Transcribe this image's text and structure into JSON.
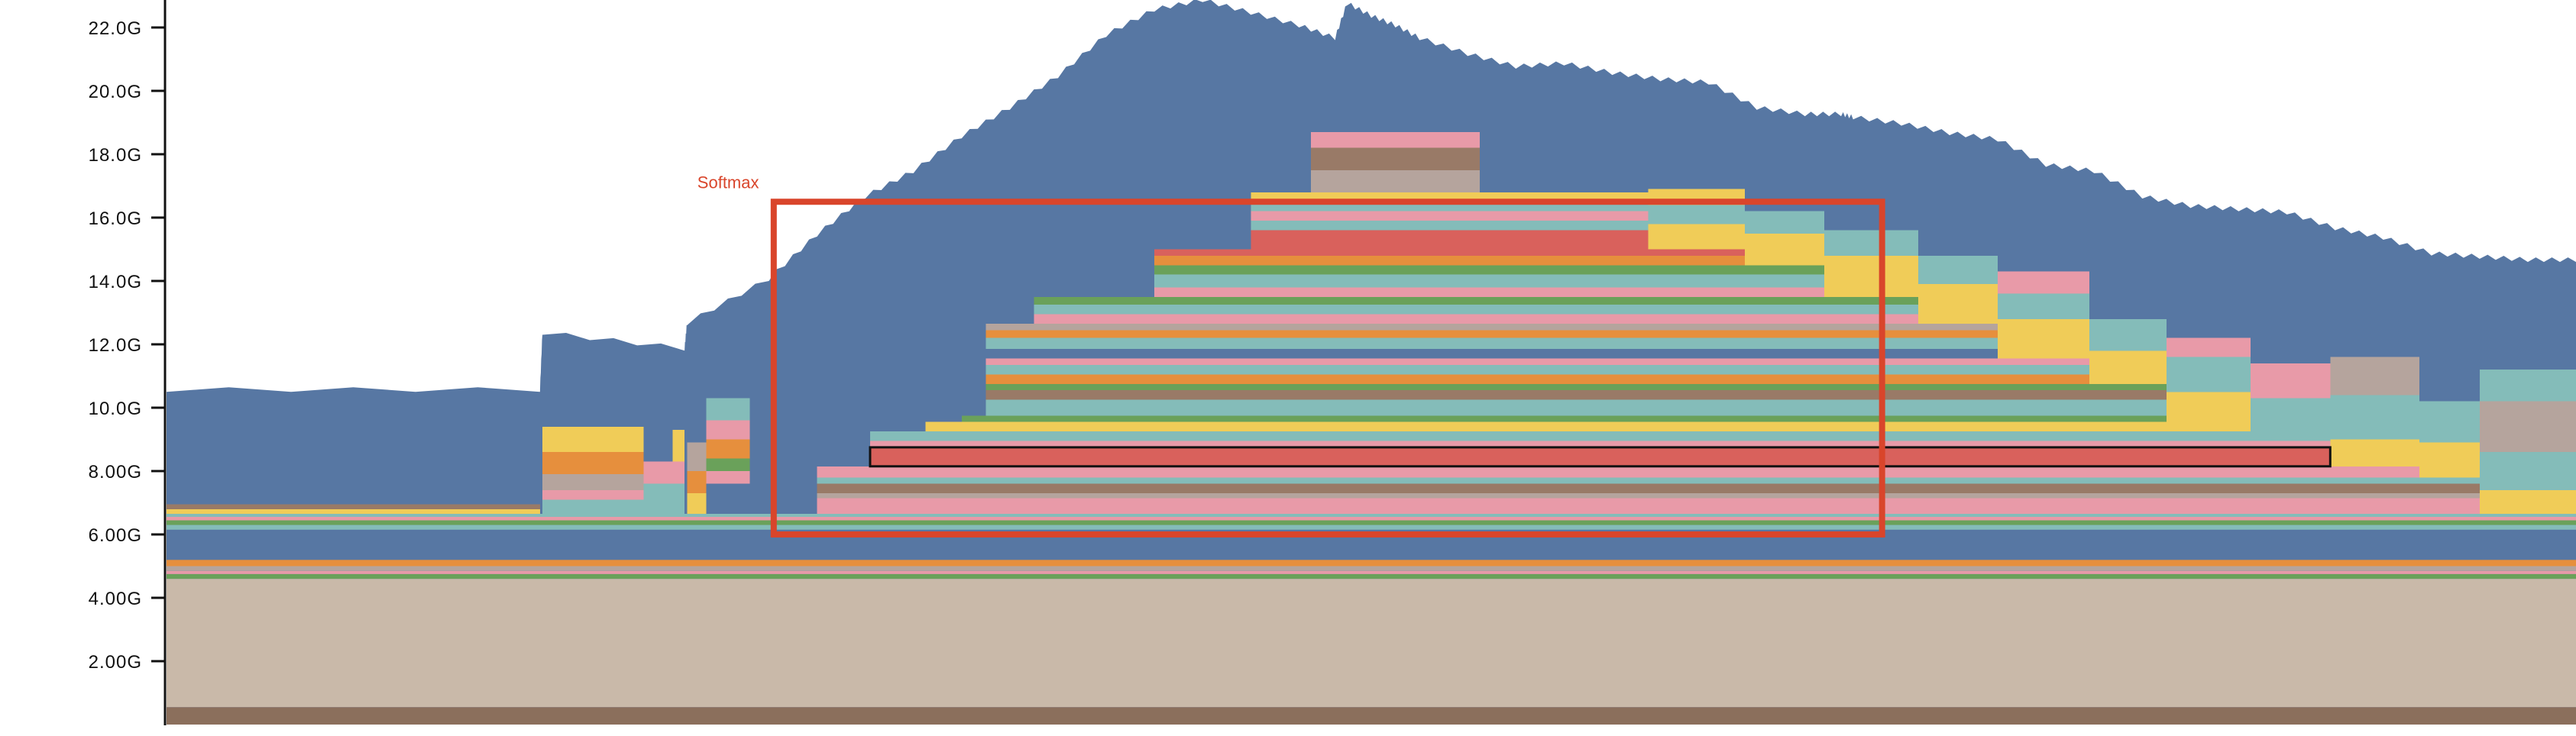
{
  "chart_data": {
    "type": "area",
    "title": "",
    "xlabel": "",
    "ylabel": "",
    "ylim": [
      0.0,
      23.0
    ],
    "xlim": [
      0,
      100
    ],
    "y_ticks": [
      "2.00G",
      "4.00G",
      "6.00G",
      "8.00G",
      "10.0G",
      "12.0G",
      "14.0G",
      "16.0G",
      "18.0G",
      "20.0G",
      "22.0G"
    ],
    "y_tick_values": [
      2,
      4,
      6,
      8,
      10,
      12,
      14,
      16,
      18,
      20,
      22
    ],
    "grid": false,
    "legend": "none",
    "colors": [
      "#8b6f5c",
      "#c9b9a9",
      "#5777a3",
      "#e89aa8",
      "#f0cc58",
      "#84bcb9",
      "#d9615c",
      "#e68f3d",
      "#b5a49d",
      "#6aa15a",
      "#997a67",
      "#e0a3b5"
    ],
    "top_total_bytes": {
      "x": [
        0,
        15.5,
        15.6,
        21.5,
        21.6,
        25,
        27,
        29,
        31,
        33,
        35,
        37,
        39,
        41,
        43,
        45,
        47,
        48.5,
        49,
        50,
        51,
        52,
        54,
        56,
        58,
        60,
        62,
        64,
        66,
        68,
        69.5,
        70,
        72,
        74,
        76,
        78,
        80,
        82,
        84,
        86,
        88,
        90,
        92,
        94,
        96,
        98,
        100
      ],
      "y": [
        10.5,
        10.5,
        12.3,
        11.8,
        12.6,
        14.0,
        15.4,
        16.6,
        17.4,
        18.5,
        19.4,
        20.4,
        21.7,
        22.5,
        22.8,
        22.4,
        22.0,
        21.6,
        22.7,
        22.3,
        22.0,
        21.6,
        21.1,
        20.7,
        20.8,
        20.5,
        20.3,
        20.2,
        19.4,
        19.2,
        19.2,
        19.1,
        18.9,
        18.6,
        18.4,
        17.6,
        17.4,
        16.6,
        16.3,
        16.2,
        16.1,
        15.6,
        15.3,
        14.8,
        14.7,
        14.6,
        14.6
      ]
    },
    "base_layers": [
      {
        "y0": 0.0,
        "y1": 0.55,
        "color": "#8b6f5c"
      },
      {
        "y0": 0.55,
        "y1": 4.6,
        "color": "#c9b9a9"
      },
      {
        "y0": 4.6,
        "y1": 4.75,
        "color": "#6aa15a"
      },
      {
        "y0": 4.75,
        "y1": 4.85,
        "color": "#e89aa8"
      },
      {
        "y0": 4.85,
        "y1": 5.0,
        "color": "#b5a49d"
      },
      {
        "y0": 5.0,
        "y1": 5.2,
        "color": "#e68f3d"
      },
      {
        "y0": 5.2,
        "y1": 6.15,
        "color": "#5777a3"
      },
      {
        "y0": 6.15,
        "y1": 6.3,
        "color": "#84bcb9"
      },
      {
        "y0": 6.3,
        "y1": 6.45,
        "color": "#6aa15a"
      }
    ],
    "allocations": [
      {
        "x0": 0,
        "x1": 100,
        "y0": 6.45,
        "y1": 6.55,
        "color": "#e89aa8"
      },
      {
        "x0": 0,
        "x1": 100,
        "y0": 6.55,
        "y1": 6.65,
        "color": "#84bcb9"
      },
      {
        "x0": 0,
        "x1": 15.5,
        "y0": 6.65,
        "y1": 6.8,
        "color": "#f0cc58"
      },
      {
        "x0": 0,
        "x1": 15.5,
        "y0": 6.8,
        "y1": 6.95,
        "color": "#997a67"
      },
      {
        "x0": 15.6,
        "x1": 19.8,
        "y0": 6.65,
        "y1": 7.1,
        "color": "#84bcb9"
      },
      {
        "x0": 15.6,
        "x1": 19.8,
        "y0": 7.1,
        "y1": 7.4,
        "color": "#e89aa8"
      },
      {
        "x0": 15.6,
        "x1": 19.8,
        "y0": 7.4,
        "y1": 7.9,
        "color": "#b5a49d"
      },
      {
        "x0": 15.6,
        "x1": 19.8,
        "y0": 7.9,
        "y1": 8.6,
        "color": "#e68f3d"
      },
      {
        "x0": 15.6,
        "x1": 19.8,
        "y0": 8.6,
        "y1": 9.4,
        "color": "#f0cc58"
      },
      {
        "x0": 19.8,
        "x1": 21.5,
        "y0": 6.65,
        "y1": 7.6,
        "color": "#84bcb9"
      },
      {
        "x0": 19.8,
        "x1": 21.5,
        "y0": 7.6,
        "y1": 8.3,
        "color": "#e89aa8"
      },
      {
        "x0": 21.0,
        "x1": 21.5,
        "y0": 8.3,
        "y1": 9.3,
        "color": "#f0cc58"
      },
      {
        "x0": 21.6,
        "x1": 22.4,
        "y0": 6.65,
        "y1": 7.3,
        "color": "#f0cc58"
      },
      {
        "x0": 21.6,
        "x1": 22.4,
        "y0": 7.3,
        "y1": 8.0,
        "color": "#e68f3d"
      },
      {
        "x0": 21.6,
        "x1": 22.4,
        "y0": 8.0,
        "y1": 8.9,
        "color": "#b5a49d"
      },
      {
        "x0": 22.4,
        "x1": 24.2,
        "y0": 7.6,
        "y1": 8.0,
        "color": "#e89aa8"
      },
      {
        "x0": 22.4,
        "x1": 24.2,
        "y0": 8.0,
        "y1": 8.4,
        "color": "#6aa15a"
      },
      {
        "x0": 22.4,
        "x1": 24.2,
        "y0": 8.4,
        "y1": 9.0,
        "color": "#e68f3d"
      },
      {
        "x0": 22.4,
        "x1": 24.2,
        "y0": 9.0,
        "y1": 9.6,
        "color": "#e89aa8"
      },
      {
        "x0": 22.4,
        "x1": 24.2,
        "y0": 9.6,
        "y1": 10.3,
        "color": "#84bcb9"
      },
      {
        "x0": 27.0,
        "x1": 96.0,
        "y0": 6.65,
        "y1": 7.15,
        "color": "#e89aa8"
      },
      {
        "x0": 27.0,
        "x1": 96.0,
        "y0": 7.15,
        "y1": 7.3,
        "color": "#b5a49d"
      },
      {
        "x0": 27.0,
        "x1": 96.0,
        "y0": 7.3,
        "y1": 7.6,
        "color": "#997a67"
      },
      {
        "x0": 27.0,
        "x1": 96.0,
        "y0": 7.6,
        "y1": 7.8,
        "color": "#84bcb9"
      },
      {
        "x0": 27.0,
        "x1": 96.0,
        "y0": 7.8,
        "y1": 8.15,
        "color": "#e89aa8"
      },
      {
        "x0": 29.2,
        "x1": 89.8,
        "y0": 8.15,
        "y1": 8.75,
        "color": "#d9615c"
      },
      {
        "x0": 29.2,
        "x1": 89.8,
        "y0": 8.75,
        "y1": 8.95,
        "color": "#e89aa8"
      },
      {
        "x0": 29.2,
        "x1": 89.8,
        "y0": 8.95,
        "y1": 9.25,
        "color": "#84bcb9"
      },
      {
        "x0": 31.5,
        "x1": 86.5,
        "y0": 9.25,
        "y1": 9.55,
        "color": "#f0cc58"
      },
      {
        "x0": 33.0,
        "x1": 83.0,
        "y0": 9.55,
        "y1": 9.75,
        "color": "#6aa15a"
      },
      {
        "x0": 34.0,
        "x1": 83.0,
        "y0": 9.75,
        "y1": 10.25,
        "color": "#84bcb9"
      },
      {
        "x0": 34.0,
        "x1": 83.0,
        "y0": 10.25,
        "y1": 10.55,
        "color": "#997a67"
      },
      {
        "x0": 34.0,
        "x1": 83.0,
        "y0": 10.55,
        "y1": 10.75,
        "color": "#6aa15a"
      },
      {
        "x0": 34.0,
        "x1": 79.8,
        "y0": 10.75,
        "y1": 11.05,
        "color": "#e68f3d"
      },
      {
        "x0": 34.0,
        "x1": 79.8,
        "y0": 11.05,
        "y1": 11.35,
        "color": "#84bcb9"
      },
      {
        "x0": 34.0,
        "x1": 79.8,
        "y0": 11.35,
        "y1": 11.55,
        "color": "#e89aa8"
      },
      {
        "x0": 34.0,
        "x1": 76.0,
        "y0": 11.55,
        "y1": 11.85,
        "color": "#5777a3"
      },
      {
        "x0": 34.0,
        "x1": 76.0,
        "y0": 11.85,
        "y1": 12.2,
        "color": "#84bcb9"
      },
      {
        "x0": 34.0,
        "x1": 76.0,
        "y0": 12.2,
        "y1": 12.45,
        "color": "#e68f3d"
      },
      {
        "x0": 34.0,
        "x1": 76.0,
        "y0": 12.45,
        "y1": 12.65,
        "color": "#b5a49d"
      },
      {
        "x0": 36.0,
        "x1": 72.7,
        "y0": 12.65,
        "y1": 12.95,
        "color": "#e89aa8"
      },
      {
        "x0": 36.0,
        "x1": 72.7,
        "y0": 12.95,
        "y1": 13.25,
        "color": "#84bcb9"
      },
      {
        "x0": 36.0,
        "x1": 72.7,
        "y0": 13.25,
        "y1": 13.5,
        "color": "#6aa15a"
      },
      {
        "x0": 41.0,
        "x1": 68.8,
        "y0": 13.5,
        "y1": 13.8,
        "color": "#e89aa8"
      },
      {
        "x0": 41.0,
        "x1": 68.8,
        "y0": 13.8,
        "y1": 14.2,
        "color": "#84bcb9"
      },
      {
        "x0": 41.0,
        "x1": 68.8,
        "y0": 14.2,
        "y1": 14.5,
        "color": "#6aa15a"
      },
      {
        "x0": 41.0,
        "x1": 65.5,
        "y0": 14.5,
        "y1": 14.8,
        "color": "#e68f3d"
      },
      {
        "x0": 41.0,
        "x1": 65.5,
        "y0": 14.8,
        "y1": 15.0,
        "color": "#d9615c"
      },
      {
        "x0": 45.0,
        "x1": 61.5,
        "y0": 15.0,
        "y1": 15.6,
        "color": "#d9615c"
      },
      {
        "x0": 45.0,
        "x1": 61.5,
        "y0": 15.6,
        "y1": 15.9,
        "color": "#84bcb9"
      },
      {
        "x0": 45.0,
        "x1": 61.5,
        "y0": 15.9,
        "y1": 16.2,
        "color": "#e89aa8"
      },
      {
        "x0": 45.0,
        "x1": 61.5,
        "y0": 16.2,
        "y1": 16.5,
        "color": "#84bcb9"
      },
      {
        "x0": 45.0,
        "x1": 61.5,
        "y0": 16.5,
        "y1": 16.8,
        "color": "#f0cc58"
      },
      {
        "x0": 47.5,
        "x1": 54.5,
        "y0": 16.8,
        "y1": 17.5,
        "color": "#b5a49d"
      },
      {
        "x0": 47.5,
        "x1": 54.5,
        "y0": 17.5,
        "y1": 18.2,
        "color": "#997a67"
      },
      {
        "x0": 47.5,
        "x1": 54.5,
        "y0": 18.2,
        "y1": 18.7,
        "color": "#e89aa8"
      },
      {
        "x0": 61.5,
        "x1": 65.5,
        "y0": 15.0,
        "y1": 15.8,
        "color": "#f0cc58"
      },
      {
        "x0": 61.5,
        "x1": 65.5,
        "y0": 15.8,
        "y1": 16.4,
        "color": "#84bcb9"
      },
      {
        "x0": 61.5,
        "x1": 65.5,
        "y0": 16.4,
        "y1": 16.9,
        "color": "#f0cc58"
      },
      {
        "x0": 65.5,
        "x1": 68.8,
        "y0": 14.5,
        "y1": 15.5,
        "color": "#f0cc58"
      },
      {
        "x0": 65.5,
        "x1": 68.8,
        "y0": 15.5,
        "y1": 16.2,
        "color": "#84bcb9"
      },
      {
        "x0": 68.8,
        "x1": 72.7,
        "y0": 13.5,
        "y1": 14.8,
        "color": "#f0cc58"
      },
      {
        "x0": 68.8,
        "x1": 72.7,
        "y0": 14.8,
        "y1": 15.6,
        "color": "#84bcb9"
      },
      {
        "x0": 72.7,
        "x1": 76.0,
        "y0": 12.65,
        "y1": 13.9,
        "color": "#f0cc58"
      },
      {
        "x0": 72.7,
        "x1": 76.0,
        "y0": 13.9,
        "y1": 14.8,
        "color": "#84bcb9"
      },
      {
        "x0": 76.0,
        "x1": 79.8,
        "y0": 11.55,
        "y1": 12.8,
        "color": "#f0cc58"
      },
      {
        "x0": 76.0,
        "x1": 79.8,
        "y0": 12.8,
        "y1": 13.6,
        "color": "#84bcb9"
      },
      {
        "x0": 76.0,
        "x1": 79.8,
        "y0": 13.6,
        "y1": 14.3,
        "color": "#e89aa8"
      },
      {
        "x0": 79.8,
        "x1": 83.0,
        "y0": 10.75,
        "y1": 11.8,
        "color": "#f0cc58"
      },
      {
        "x0": 79.8,
        "x1": 83.0,
        "y0": 11.8,
        "y1": 12.8,
        "color": "#84bcb9"
      },
      {
        "x0": 83.0,
        "x1": 86.5,
        "y0": 9.55,
        "y1": 10.5,
        "color": "#f0cc58"
      },
      {
        "x0": 83.0,
        "x1": 86.5,
        "y0": 10.5,
        "y1": 11.6,
        "color": "#84bcb9"
      },
      {
        "x0": 83.0,
        "x1": 86.5,
        "y0": 11.6,
        "y1": 12.2,
        "color": "#e89aa8"
      },
      {
        "x0": 86.5,
        "x1": 89.8,
        "y0": 9.25,
        "y1": 10.3,
        "color": "#84bcb9"
      },
      {
        "x0": 86.5,
        "x1": 89.8,
        "y0": 10.3,
        "y1": 11.4,
        "color": "#e89aa8"
      },
      {
        "x0": 89.8,
        "x1": 93.5,
        "y0": 8.15,
        "y1": 9.0,
        "color": "#f0cc58"
      },
      {
        "x0": 89.8,
        "x1": 93.5,
        "y0": 9.0,
        "y1": 10.4,
        "color": "#84bcb9"
      },
      {
        "x0": 89.8,
        "x1": 93.5,
        "y0": 10.4,
        "y1": 11.6,
        "color": "#b5a49d"
      },
      {
        "x0": 93.5,
        "x1": 96.0,
        "y0": 7.8,
        "y1": 8.9,
        "color": "#f0cc58"
      },
      {
        "x0": 93.5,
        "x1": 96.0,
        "y0": 8.9,
        "y1": 10.2,
        "color": "#84bcb9"
      },
      {
        "x0": 96.0,
        "x1": 100,
        "y0": 6.65,
        "y1": 7.4,
        "color": "#f0cc58"
      },
      {
        "x0": 96.0,
        "x1": 100,
        "y0": 7.4,
        "y1": 8.6,
        "color": "#84bcb9"
      },
      {
        "x0": 96.0,
        "x1": 100,
        "y0": 8.6,
        "y1": 10.2,
        "color": "#b5a49d"
      },
      {
        "x0": 96.0,
        "x1": 100,
        "y0": 10.2,
        "y1": 11.2,
        "color": "#84bcb9"
      }
    ],
    "annotations": [
      {
        "text": "Softmax",
        "x0": 25.2,
        "x1": 71.2,
        "y0": 6.0,
        "y1": 16.5,
        "color": "#d9452b"
      }
    ]
  }
}
